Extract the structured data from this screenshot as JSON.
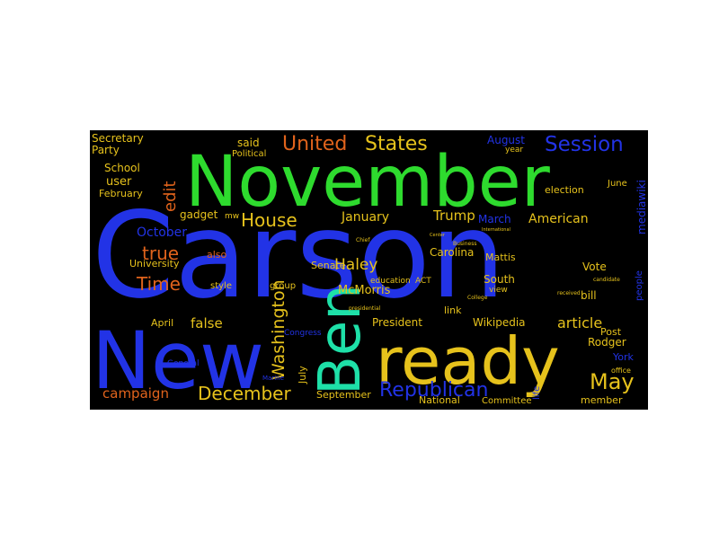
{
  "palette": {
    "background": "#ffffff",
    "cloud_background": "#000000",
    "blue": "#2233e6",
    "green": "#2edb2e",
    "yellow": "#e6c21c",
    "teal": "#1ee0a8",
    "orange": "#e0631c",
    "dark_blue": "#1a2aa8",
    "gold": "#c9a318",
    "light_green": "#22c46c"
  },
  "words": [
    {
      "text": "Carson",
      "color": "blue"
    },
    {
      "text": "November",
      "color": "green"
    },
    {
      "text": "New",
      "color": "blue"
    },
    {
      "text": "ready",
      "color": "yellow"
    },
    {
      "text": "Ben",
      "color": "teal"
    },
    {
      "text": "United",
      "color": "orange"
    },
    {
      "text": "States",
      "color": "yellow"
    },
    {
      "text": "Session",
      "color": "blue"
    },
    {
      "text": "House",
      "color": "yellow"
    },
    {
      "text": "edit",
      "color": "orange"
    },
    {
      "text": "Republican",
      "color": "blue"
    },
    {
      "text": "December",
      "color": "yellow"
    },
    {
      "text": "May",
      "color": "yellow"
    },
    {
      "text": "Washington",
      "color": "yellow"
    },
    {
      "text": "Time",
      "color": "orange"
    },
    {
      "text": "true",
      "color": "orange"
    },
    {
      "text": "Trump",
      "color": "yellow"
    },
    {
      "text": "January",
      "color": "yellow"
    },
    {
      "text": "American",
      "color": "yellow"
    },
    {
      "text": "March",
      "color": "blue"
    },
    {
      "text": "McMorris",
      "color": "yellow"
    },
    {
      "text": "Haley",
      "color": "yellow"
    },
    {
      "text": "article",
      "color": "yellow"
    },
    {
      "text": "false",
      "color": "yellow"
    },
    {
      "text": "campaign",
      "color": "orange"
    },
    {
      "text": "October",
      "color": "blue"
    },
    {
      "text": "Secretary",
      "color": "yellow"
    },
    {
      "text": "Party",
      "color": "yellow"
    },
    {
      "text": "School",
      "color": "yellow"
    },
    {
      "text": "user",
      "color": "yellow"
    },
    {
      "text": "February",
      "color": "yellow"
    },
    {
      "text": "gadget",
      "color": "yellow"
    },
    {
      "text": "said",
      "color": "yellow"
    },
    {
      "text": "August",
      "color": "blue"
    },
    {
      "text": "mediawiki",
      "color": "blue"
    },
    {
      "text": "Carolina",
      "color": "yellow"
    },
    {
      "text": "University",
      "color": "yellow"
    },
    {
      "text": "also",
      "color": "orange"
    },
    {
      "text": "Senate",
      "color": "yellow"
    },
    {
      "text": "Mattis",
      "color": "yellow"
    },
    {
      "text": "South",
      "color": "yellow"
    },
    {
      "text": "Vote",
      "color": "yellow"
    },
    {
      "text": "bill",
      "color": "yellow"
    },
    {
      "text": "link",
      "color": "yellow"
    },
    {
      "text": "President",
      "color": "yellow"
    },
    {
      "text": "Wikipedia",
      "color": "yellow"
    },
    {
      "text": "April",
      "color": "yellow"
    },
    {
      "text": "July",
      "color": "yellow"
    },
    {
      "text": "Post",
      "color": "yellow"
    },
    {
      "text": "Rodger",
      "color": "yellow"
    },
    {
      "text": "York",
      "color": "blue"
    },
    {
      "text": "September",
      "color": "yellow"
    },
    {
      "text": "National",
      "color": "yellow"
    },
    {
      "text": "Committee",
      "color": "yellow"
    },
    {
      "text": "member",
      "color": "yellow"
    },
    {
      "text": "election",
      "color": "yellow"
    },
    {
      "text": "June",
      "color": "yellow"
    },
    {
      "text": "people",
      "color": "blue"
    },
    {
      "text": "Political",
      "color": "yellow"
    },
    {
      "text": "group",
      "color": "yellow"
    },
    {
      "text": "style",
      "color": "yellow"
    },
    {
      "text": "Congress",
      "color": "blue"
    },
    {
      "text": "education",
      "color": "yellow"
    },
    {
      "text": "ACT",
      "color": "yellow"
    },
    {
      "text": "view",
      "color": "yellow"
    },
    {
      "text": "year",
      "color": "yellow"
    },
    {
      "text": "life",
      "color": "blue"
    },
    {
      "text": "office",
      "color": "yellow"
    },
    {
      "text": "mw",
      "color": "yellow"
    },
    {
      "text": "presidential",
      "color": "yellow"
    },
    {
      "text": "Business",
      "color": "yellow"
    },
    {
      "text": "Chief",
      "color": "yellow"
    },
    {
      "text": "International",
      "color": "yellow"
    },
    {
      "text": "Center",
      "color": "yellow"
    },
    {
      "text": "College",
      "color": "yellow"
    },
    {
      "text": "General",
      "color": "blue"
    },
    {
      "text": "Marine",
      "color": "blue"
    },
    {
      "text": "received",
      "color": "yellow"
    },
    {
      "text": "candidate",
      "color": "yellow"
    }
  ]
}
